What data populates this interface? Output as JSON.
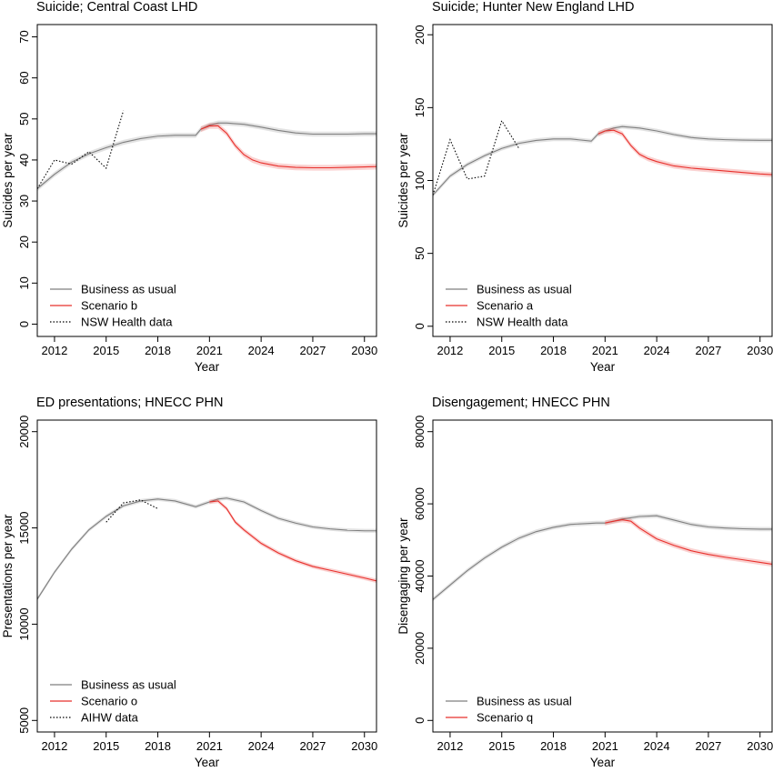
{
  "chart_data": [
    {
      "type": "line",
      "title": "Suicide; Central Coast LHD",
      "xlabel": "Year",
      "ylabel": "Suicides per year",
      "xlim": [
        2011,
        2030.7
      ],
      "ylim": [
        -3,
        73
      ],
      "xticks": [
        2012,
        2015,
        2018,
        2021,
        2024,
        2027,
        2030
      ],
      "yticks": [
        0,
        10,
        20,
        30,
        40,
        50,
        60,
        70
      ],
      "legend": [
        "Business as usual",
        "Scenario b",
        "NSW Health data"
      ],
      "legend_position": "bottom-left",
      "series": [
        {
          "name": "Business as usual",
          "color": "#7f7f7f",
          "style": "solid",
          "x": [
            2011,
            2012,
            2013,
            2014,
            2015,
            2016,
            2017,
            2018,
            2019,
            2020.2,
            2020.5,
            2021,
            2021.5,
            2022,
            2023,
            2024,
            2025,
            2026,
            2027,
            2028,
            2029,
            2030,
            2030.7
          ],
          "y": [
            33,
            36.5,
            39.5,
            41.5,
            43,
            44.3,
            45.2,
            45.8,
            46,
            46,
            47.5,
            48.5,
            49,
            49,
            48.7,
            48,
            47.2,
            46.6,
            46.3,
            46.3,
            46.3,
            46.4,
            46.4
          ],
          "band": 0.6
        },
        {
          "name": "Scenario b",
          "color": "#e8302c",
          "style": "solid",
          "x": [
            2020.5,
            2021,
            2021.5,
            2022,
            2022.5,
            2023,
            2023.5,
            2024,
            2025,
            2026,
            2027,
            2028,
            2029,
            2030,
            2030.7
          ],
          "y": [
            47.5,
            48.3,
            48.3,
            46.5,
            43.5,
            41.3,
            40,
            39.3,
            38.5,
            38.2,
            38.1,
            38.1,
            38.2,
            38.3,
            38.4
          ],
          "band": 0.7
        },
        {
          "name": "NSW Health data",
          "color": "#000000",
          "style": "dotted",
          "x": [
            2011,
            2012,
            2013,
            2014,
            2015,
            2016
          ],
          "y": [
            33,
            40,
            39,
            42,
            38,
            52
          ]
        }
      ]
    },
    {
      "type": "line",
      "title": "Suicide; Hunter New England LHD",
      "xlabel": "Year",
      "ylabel": "Suicides per year",
      "xlim": [
        2011,
        2030.7
      ],
      "ylim": [
        -7,
        207
      ],
      "xticks": [
        2012,
        2015,
        2018,
        2021,
        2024,
        2027,
        2030
      ],
      "yticks": [
        0,
        50,
        100,
        150,
        200
      ],
      "legend": [
        "Business as usual",
        "Scenario a",
        "NSW Health data"
      ],
      "legend_position": "bottom-left",
      "series": [
        {
          "name": "Business as usual",
          "color": "#7f7f7f",
          "style": "solid",
          "x": [
            2011,
            2012,
            2013,
            2014,
            2015,
            2016,
            2017,
            2018,
            2019,
            2020.2,
            2020.6,
            2021,
            2021.5,
            2022,
            2023,
            2024,
            2025,
            2026,
            2027,
            2028,
            2029,
            2030,
            2030.7
          ],
          "y": [
            90,
            103,
            111,
            117,
            122,
            125.5,
            127.5,
            128.5,
            128.5,
            127,
            132,
            134,
            136,
            137,
            136,
            134,
            131.5,
            129.5,
            128.5,
            128,
            127.7,
            127.6,
            127.6
          ],
          "band": 1.5
        },
        {
          "name": "Scenario a",
          "color": "#e8302c",
          "style": "solid",
          "x": [
            2020.6,
            2021,
            2021.5,
            2022,
            2022.5,
            2023,
            2023.5,
            2024,
            2025,
            2026,
            2027,
            2028,
            2029,
            2030,
            2030.7
          ],
          "y": [
            132,
            134,
            134.5,
            132,
            124,
            118,
            115,
            113,
            110,
            108.5,
            107.5,
            106.5,
            105.5,
            104.5,
            104
          ],
          "band": 1.8
        },
        {
          "name": "NSW Health data",
          "color": "#000000",
          "style": "dotted",
          "x": [
            2011,
            2012,
            2013,
            2014,
            2015,
            2016
          ],
          "y": [
            90,
            128,
            101,
            103,
            141,
            122
          ]
        }
      ]
    },
    {
      "type": "line",
      "title": "ED presentations; HNECC PHN",
      "xlabel": "Year",
      "ylabel": "Presentations per year",
      "xlim": [
        2011,
        2030.7
      ],
      "ylim": [
        4400,
        20600
      ],
      "xticks": [
        2012,
        2015,
        2018,
        2021,
        2024,
        2027,
        2030
      ],
      "yticks": [
        5000,
        10000,
        15000,
        20000
      ],
      "legend": [
        "Business as usual",
        "Scenario o",
        "AIHW data"
      ],
      "legend_position": "bottom-left",
      "series": [
        {
          "name": "Business as usual",
          "color": "#7f7f7f",
          "style": "solid",
          "x": [
            2011,
            2012,
            2013,
            2014,
            2015,
            2016,
            2017,
            2018,
            2019,
            2020.2,
            2021,
            2021.5,
            2022,
            2023,
            2024,
            2025,
            2026,
            2027,
            2028,
            2029,
            2030,
            2030.7
          ],
          "y": [
            11300,
            12700,
            13900,
            14900,
            15600,
            16150,
            16400,
            16500,
            16400,
            16100,
            16350,
            16500,
            16550,
            16350,
            15900,
            15500,
            15250,
            15050,
            14950,
            14880,
            14850,
            14850
          ],
          "band": 100
        },
        {
          "name": "Scenario o",
          "color": "#e8302c",
          "style": "solid",
          "x": [
            2021,
            2021.5,
            2022,
            2022.5,
            2023,
            2024,
            2025,
            2026,
            2027,
            2028,
            2029,
            2030,
            2030.7
          ],
          "y": [
            16350,
            16400,
            16000,
            15300,
            14900,
            14200,
            13700,
            13300,
            13000,
            12800,
            12600,
            12400,
            12250
          ],
          "band": 110
        },
        {
          "name": "AIHW data",
          "color": "#000000",
          "style": "dotted",
          "x": [
            2015,
            2016,
            2017,
            2018
          ],
          "y": [
            15300,
            16300,
            16450,
            16000
          ]
        }
      ]
    },
    {
      "type": "line",
      "title": "Disengagement; HNECC PHN",
      "xlabel": "Year",
      "ylabel": "Disengaging per year",
      "xlim": [
        2011,
        2030.7
      ],
      "ylim": [
        -3200,
        83200
      ],
      "xticks": [
        2012,
        2015,
        2018,
        2021,
        2024,
        2027,
        2030
      ],
      "yticks": [
        0,
        20000,
        40000,
        60000,
        80000
      ],
      "legend": [
        "Business as usual",
        "Scenario q"
      ],
      "legend_position": "bottom-left",
      "series": [
        {
          "name": "Business as usual",
          "color": "#7f7f7f",
          "style": "solid",
          "x": [
            2011,
            2012,
            2013,
            2014,
            2015,
            2016,
            2017,
            2018,
            2019,
            2020.5,
            2021,
            2021.5,
            2022,
            2023,
            2024,
            2025,
            2026,
            2027,
            2028,
            2029,
            2030,
            2030.7
          ],
          "y": [
            33500,
            37500,
            41500,
            45000,
            48000,
            50500,
            52300,
            53500,
            54300,
            54700,
            54700,
            55200,
            55800,
            56500,
            56700,
            55500,
            54300,
            53600,
            53300,
            53100,
            53000,
            53000
          ],
          "band": 600
        },
        {
          "name": "Scenario q",
          "color": "#e8302c",
          "style": "solid",
          "x": [
            2021,
            2021.5,
            2022,
            2022.5,
            2023,
            2024,
            2025,
            2026,
            2027,
            2028,
            2029,
            2030,
            2030.7
          ],
          "y": [
            54700,
            55200,
            55600,
            55200,
            53300,
            50300,
            48500,
            47000,
            46000,
            45200,
            44500,
            43800,
            43300
          ],
          "band": 700
        }
      ]
    }
  ]
}
